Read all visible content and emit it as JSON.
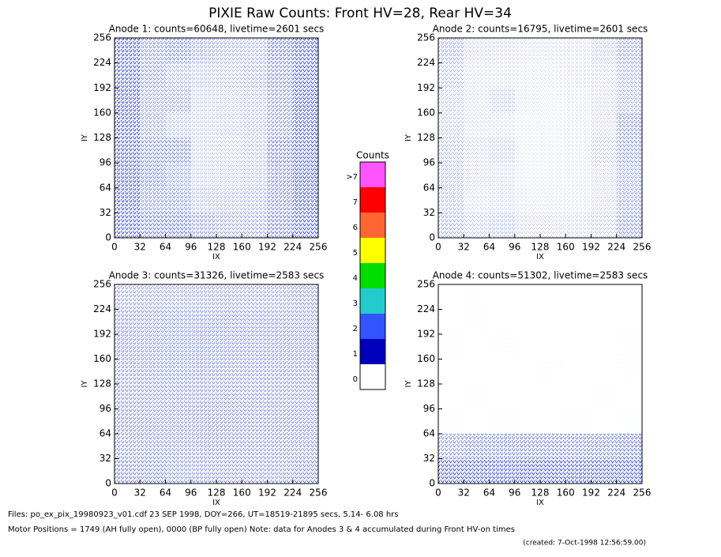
{
  "chart_data": [
    {
      "type": "heatmap",
      "title": "Anode 1: counts=60648, livetime=2601 secs",
      "x_label": "IX",
      "y_label": "IY",
      "xlim": [
        0,
        256
      ],
      "ylim": [
        0,
        256
      ],
      "xticks": [
        0,
        32,
        64,
        96,
        128,
        160,
        192,
        224,
        256
      ],
      "yticks": [
        0,
        32,
        64,
        96,
        128,
        160,
        192,
        224,
        256
      ],
      "color": "#1030e0",
      "density": [
        [
          0.8,
          0.4,
          0.45,
          0.35,
          0.3,
          0.3,
          0.5,
          0.8
        ],
        [
          0.8,
          0.4,
          0.3,
          0.25,
          0.25,
          0.3,
          0.45,
          0.8
        ],
        [
          0.8,
          0.35,
          0.35,
          0.2,
          0.2,
          0.25,
          0.4,
          0.7
        ],
        [
          0.8,
          0.35,
          0.25,
          0.2,
          0.2,
          0.25,
          0.4,
          0.8
        ],
        [
          0.8,
          0.45,
          0.45,
          0.2,
          0.2,
          0.25,
          0.5,
          0.9
        ],
        [
          0.8,
          0.45,
          0.35,
          0.2,
          0.2,
          0.25,
          0.45,
          0.8
        ],
        [
          0.8,
          0.4,
          0.4,
          0.25,
          0.25,
          0.3,
          0.45,
          0.8
        ],
        [
          0.9,
          0.5,
          0.5,
          0.4,
          0.35,
          0.35,
          0.5,
          0.8
        ]
      ]
    },
    {
      "type": "heatmap",
      "title": "Anode 2: counts=16795, livetime=2601 secs",
      "x_label": "IX",
      "y_label": "IY",
      "xlim": [
        0,
        256
      ],
      "ylim": [
        0,
        256
      ],
      "xticks": [
        0,
        32,
        64,
        96,
        128,
        160,
        192,
        224,
        256
      ],
      "yticks": [
        0,
        32,
        64,
        96,
        128,
        160,
        192,
        224,
        256
      ],
      "color": "#1030e0",
      "density": [
        [
          0.3,
          0.15,
          0.15,
          0.12,
          0.12,
          0.12,
          0.2,
          0.35
        ],
        [
          0.25,
          0.12,
          0.12,
          0.1,
          0.1,
          0.12,
          0.15,
          0.3
        ],
        [
          0.2,
          0.12,
          0.2,
          0.1,
          0.08,
          0.1,
          0.15,
          0.3
        ],
        [
          0.2,
          0.12,
          0.12,
          0.08,
          0.08,
          0.1,
          0.15,
          0.4
        ],
        [
          0.25,
          0.15,
          0.2,
          0.08,
          0.08,
          0.1,
          0.2,
          0.4
        ],
        [
          0.25,
          0.15,
          0.15,
          0.08,
          0.08,
          0.1,
          0.15,
          0.35
        ],
        [
          0.25,
          0.12,
          0.15,
          0.1,
          0.1,
          0.1,
          0.15,
          0.35
        ],
        [
          0.3,
          0.2,
          0.25,
          0.15,
          0.15,
          0.15,
          0.2,
          0.4
        ]
      ]
    },
    {
      "type": "heatmap",
      "title": "Anode 3: counts=31326, livetime=2583 secs",
      "x_label": "IX",
      "y_label": "IY",
      "xlim": [
        0,
        256
      ],
      "ylim": [
        0,
        256
      ],
      "xticks": [
        0,
        32,
        64,
        96,
        128,
        160,
        192,
        224,
        256
      ],
      "yticks": [
        0,
        32,
        64,
        96,
        128,
        160,
        192,
        224,
        256
      ],
      "color": "#1030e0",
      "density": [
        [
          0.35,
          0.35,
          0.35,
          0.35,
          0.35,
          0.35,
          0.35,
          0.4
        ],
        [
          0.4,
          0.4,
          0.4,
          0.4,
          0.4,
          0.4,
          0.4,
          0.4
        ],
        [
          0.4,
          0.4,
          0.4,
          0.4,
          0.4,
          0.4,
          0.4,
          0.4
        ],
        [
          0.4,
          0.4,
          0.4,
          0.4,
          0.4,
          0.4,
          0.4,
          0.4
        ],
        [
          0.4,
          0.4,
          0.4,
          0.4,
          0.4,
          0.4,
          0.4,
          0.4
        ],
        [
          0.4,
          0.4,
          0.4,
          0.4,
          0.4,
          0.4,
          0.4,
          0.4
        ],
        [
          0.4,
          0.4,
          0.4,
          0.4,
          0.4,
          0.4,
          0.4,
          0.4
        ],
        [
          0.45,
          0.45,
          0.4,
          0.4,
          0.4,
          0.4,
          0.4,
          0.45
        ]
      ]
    },
    {
      "type": "heatmap",
      "title": "Anode 4: counts=51302, livetime=2583 secs",
      "x_label": "IX",
      "y_label": "IY",
      "xlim": [
        0,
        256
      ],
      "ylim": [
        0,
        256
      ],
      "xticks": [
        0,
        32,
        64,
        96,
        128,
        160,
        192,
        224,
        256
      ],
      "yticks": [
        0,
        32,
        64,
        96,
        128,
        160,
        192,
        224,
        256
      ],
      "color": "#1030e0",
      "density": [
        [
          0,
          0.01,
          0,
          0,
          0,
          0,
          0,
          0
        ],
        [
          0,
          0.01,
          0,
          0,
          0,
          0,
          0,
          0
        ],
        [
          0.01,
          0,
          0.01,
          0,
          0,
          0,
          0,
          0.01
        ],
        [
          0,
          0,
          0,
          0,
          0.01,
          0,
          0,
          0.01
        ],
        [
          0,
          0.01,
          0,
          0,
          0,
          0,
          0.01,
          0
        ],
        [
          0.01,
          0,
          0.01,
          0,
          0,
          0.01,
          0,
          0.01
        ],
        [
          0.4,
          0.45,
          0.45,
          0.45,
          0.45,
          0.45,
          0.45,
          0.5
        ],
        [
          1,
          0.9,
          0.85,
          0.85,
          0.85,
          0.85,
          0.9,
          1
        ]
      ]
    }
  ],
  "title": "PIXIE Raw Counts:  Front HV=28, Rear HV=34",
  "colorbar": {
    "title": "Counts",
    "labels": [
      ">7",
      "7",
      "6",
      "5",
      "4",
      "3",
      "2",
      "1",
      "0"
    ],
    "colors": [
      "#ff55ff",
      "#ff0000",
      "#ff6633",
      "#ffff00",
      "#00dd00",
      "#22cccc",
      "#3355ff",
      "#0000bb",
      "#ffffff"
    ]
  },
  "footer": [
    "Files: po_ex_pix_19980923_v01.cdf     23 SEP 1998, DOY=266, UT=18519-21895 secs,  5.14- 6.08 hrs",
    "Motor Positions = 1749 (AH fully open), 0000 (BP fully open)    Note: data for Anodes 3 & 4 accumulated during Front HV-on times",
    "(created:  7-Oct-1998 12:56:59.00)"
  ]
}
